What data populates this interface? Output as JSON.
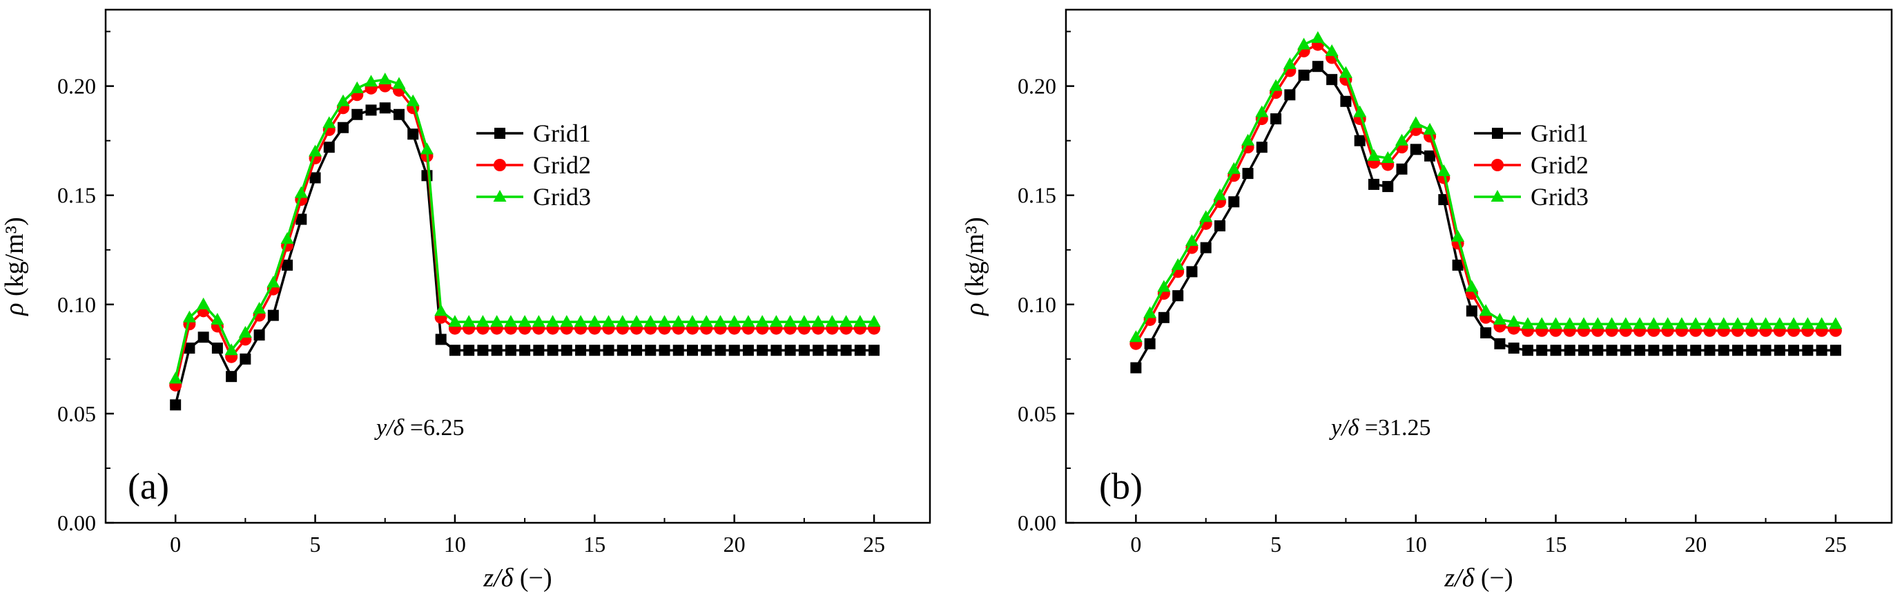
{
  "chart_data": [
    {
      "type": "line",
      "panel_label": "(a)",
      "annotation": {
        "prefix": "y/δ ",
        "value": "=6.25"
      },
      "xlabel": {
        "var": "z/δ",
        "unit": " (−)"
      },
      "ylabel": {
        "var": "ρ",
        "unit": " (kg/m³)"
      },
      "xlim": [
        -2.5,
        27
      ],
      "ylim": [
        0,
        0.235
      ],
      "xticks": [
        0,
        5,
        10,
        15,
        20,
        25
      ],
      "xtick_labels": [
        "0",
        "5",
        "10",
        "15",
        "20",
        "25"
      ],
      "yticks": [
        0,
        0.05,
        0.1,
        0.15,
        0.2
      ],
      "ytick_labels": [
        "0.00",
        "0.05",
        "0.10",
        "0.15",
        "0.20"
      ],
      "legend_position": "center-right",
      "series": [
        {
          "name": "Grid1",
          "color": "#000000",
          "marker": "square",
          "x": [
            0,
            0.5,
            1,
            1.5,
            2,
            2.5,
            3,
            3.5,
            4,
            4.5,
            5,
            5.5,
            6,
            6.5,
            7,
            7.5,
            8,
            8.5,
            9,
            9.5,
            10,
            10.5,
            11,
            11.5,
            12,
            12.5,
            13,
            13.5,
            14,
            14.5,
            15,
            15.5,
            16,
            16.5,
            17,
            17.5,
            18,
            18.5,
            19,
            19.5,
            20,
            20.5,
            21,
            21.5,
            22,
            22.5,
            23,
            23.5,
            24,
            24.5,
            25
          ],
          "y": [
            0.054,
            0.08,
            0.085,
            0.08,
            0.067,
            0.075,
            0.086,
            0.095,
            0.118,
            0.139,
            0.158,
            0.172,
            0.181,
            0.187,
            0.189,
            0.19,
            0.187,
            0.178,
            0.159,
            0.084,
            0.079,
            0.079,
            0.079,
            0.079,
            0.079,
            0.079,
            0.079,
            0.079,
            0.079,
            0.079,
            0.079,
            0.079,
            0.079,
            0.079,
            0.079,
            0.079,
            0.079,
            0.079,
            0.079,
            0.079,
            0.079,
            0.079,
            0.079,
            0.079,
            0.079,
            0.079,
            0.079,
            0.079,
            0.079,
            0.079,
            0.079
          ]
        },
        {
          "name": "Grid2",
          "color": "#ff0000",
          "marker": "circle",
          "x": [
            0,
            0.5,
            1,
            1.5,
            2,
            2.5,
            3,
            3.5,
            4,
            4.5,
            5,
            5.5,
            6,
            6.5,
            7,
            7.5,
            8,
            8.5,
            9,
            9.5,
            10,
            10.5,
            11,
            11.5,
            12,
            12.5,
            13,
            13.5,
            14,
            14.5,
            15,
            15.5,
            16,
            16.5,
            17,
            17.5,
            18,
            18.5,
            19,
            19.5,
            20,
            20.5,
            21,
            21.5,
            22,
            22.5,
            23,
            23.5,
            24,
            24.5,
            25
          ],
          "y": [
            0.063,
            0.091,
            0.097,
            0.09,
            0.076,
            0.084,
            0.095,
            0.107,
            0.127,
            0.148,
            0.167,
            0.18,
            0.19,
            0.196,
            0.199,
            0.2,
            0.198,
            0.19,
            0.168,
            0.094,
            0.089,
            0.089,
            0.089,
            0.089,
            0.089,
            0.089,
            0.089,
            0.089,
            0.089,
            0.089,
            0.089,
            0.089,
            0.089,
            0.089,
            0.089,
            0.089,
            0.089,
            0.089,
            0.089,
            0.089,
            0.089,
            0.089,
            0.089,
            0.089,
            0.089,
            0.089,
            0.089,
            0.089,
            0.089,
            0.089,
            0.089
          ]
        },
        {
          "name": "Grid3",
          "color": "#00dd00",
          "marker": "triangle",
          "x": [
            0,
            0.5,
            1,
            1.5,
            2,
            2.5,
            3,
            3.5,
            4,
            4.5,
            5,
            5.5,
            6,
            6.5,
            7,
            7.5,
            8,
            8.5,
            9,
            9.5,
            10,
            10.5,
            11,
            11.5,
            12,
            12.5,
            13,
            13.5,
            14,
            14.5,
            15,
            15.5,
            16,
            16.5,
            17,
            17.5,
            18,
            18.5,
            19,
            19.5,
            20,
            20.5,
            21,
            21.5,
            22,
            22.5,
            23,
            23.5,
            24,
            24.5,
            25
          ],
          "y": [
            0.066,
            0.094,
            0.1,
            0.093,
            0.079,
            0.087,
            0.098,
            0.11,
            0.13,
            0.151,
            0.17,
            0.183,
            0.193,
            0.199,
            0.202,
            0.203,
            0.201,
            0.193,
            0.171,
            0.097,
            0.092,
            0.092,
            0.092,
            0.092,
            0.092,
            0.092,
            0.092,
            0.092,
            0.092,
            0.092,
            0.092,
            0.092,
            0.092,
            0.092,
            0.092,
            0.092,
            0.092,
            0.092,
            0.092,
            0.092,
            0.092,
            0.092,
            0.092,
            0.092,
            0.092,
            0.092,
            0.092,
            0.092,
            0.092,
            0.092,
            0.092
          ]
        }
      ]
    },
    {
      "type": "line",
      "panel_label": "(b)",
      "annotation": {
        "prefix": "y/δ ",
        "value": "=31.25"
      },
      "xlabel": {
        "var": "z/δ",
        "unit": " (−)"
      },
      "ylabel": {
        "var": "ρ",
        "unit": " (kg/m³)"
      },
      "xlim": [
        -2.5,
        27
      ],
      "ylim": [
        0,
        0.235
      ],
      "xticks": [
        0,
        5,
        10,
        15,
        20,
        25
      ],
      "xtick_labels": [
        "0",
        "5",
        "10",
        "15",
        "20",
        "25"
      ],
      "yticks": [
        0,
        0.05,
        0.1,
        0.15,
        0.2
      ],
      "ytick_labels": [
        "0.00",
        "0.05",
        "0.10",
        "0.15",
        "0.20"
      ],
      "legend_position": "center-right",
      "series": [
        {
          "name": "Grid1",
          "color": "#000000",
          "marker": "square",
          "x": [
            0,
            0.5,
            1,
            1.5,
            2,
            2.5,
            3,
            3.5,
            4,
            4.5,
            5,
            5.5,
            6,
            6.5,
            7,
            7.5,
            8,
            8.5,
            9,
            9.5,
            10,
            10.5,
            11,
            11.5,
            12,
            12.5,
            13,
            13.5,
            14,
            14.5,
            15,
            15.5,
            16,
            16.5,
            17,
            17.5,
            18,
            18.5,
            19,
            19.5,
            20,
            20.5,
            21,
            21.5,
            22,
            22.5,
            23,
            23.5,
            24,
            24.5,
            25
          ],
          "y": [
            0.071,
            0.082,
            0.094,
            0.104,
            0.115,
            0.126,
            0.136,
            0.147,
            0.16,
            0.172,
            0.185,
            0.196,
            0.205,
            0.209,
            0.203,
            0.193,
            0.175,
            0.155,
            0.154,
            0.162,
            0.171,
            0.168,
            0.148,
            0.118,
            0.097,
            0.087,
            0.082,
            0.08,
            0.079,
            0.079,
            0.079,
            0.079,
            0.079,
            0.079,
            0.079,
            0.079,
            0.079,
            0.079,
            0.079,
            0.079,
            0.079,
            0.079,
            0.079,
            0.079,
            0.079,
            0.079,
            0.079,
            0.079,
            0.079,
            0.079,
            0.079
          ]
        },
        {
          "name": "Grid2",
          "color": "#ff0000",
          "marker": "circle",
          "x": [
            0,
            0.5,
            1,
            1.5,
            2,
            2.5,
            3,
            3.5,
            4,
            4.5,
            5,
            5.5,
            6,
            6.5,
            7,
            7.5,
            8,
            8.5,
            9,
            9.5,
            10,
            10.5,
            11,
            11.5,
            12,
            12.5,
            13,
            13.5,
            14,
            14.5,
            15,
            15.5,
            16,
            16.5,
            17,
            17.5,
            18,
            18.5,
            19,
            19.5,
            20,
            20.5,
            21,
            21.5,
            22,
            22.5,
            23,
            23.5,
            24,
            24.5,
            25
          ],
          "y": [
            0.082,
            0.093,
            0.105,
            0.115,
            0.126,
            0.137,
            0.147,
            0.159,
            0.172,
            0.185,
            0.197,
            0.207,
            0.216,
            0.219,
            0.213,
            0.203,
            0.185,
            0.165,
            0.164,
            0.172,
            0.18,
            0.177,
            0.158,
            0.128,
            0.105,
            0.094,
            0.09,
            0.089,
            0.088,
            0.088,
            0.088,
            0.088,
            0.088,
            0.088,
            0.088,
            0.088,
            0.088,
            0.088,
            0.088,
            0.088,
            0.088,
            0.088,
            0.088,
            0.088,
            0.088,
            0.088,
            0.088,
            0.088,
            0.088,
            0.088,
            0.088
          ]
        },
        {
          "name": "Grid3",
          "color": "#00dd00",
          "marker": "triangle",
          "x": [
            0,
            0.5,
            1,
            1.5,
            2,
            2.5,
            3,
            3.5,
            4,
            4.5,
            5,
            5.5,
            6,
            6.5,
            7,
            7.5,
            8,
            8.5,
            9,
            9.5,
            10,
            10.5,
            11,
            11.5,
            12,
            12.5,
            13,
            13.5,
            14,
            14.5,
            15,
            15.5,
            16,
            16.5,
            17,
            17.5,
            18,
            18.5,
            19,
            19.5,
            20,
            20.5,
            21,
            21.5,
            22,
            22.5,
            23,
            23.5,
            24,
            24.5,
            25
          ],
          "y": [
            0.085,
            0.096,
            0.108,
            0.118,
            0.129,
            0.14,
            0.15,
            0.162,
            0.175,
            0.188,
            0.2,
            0.21,
            0.219,
            0.222,
            0.216,
            0.206,
            0.188,
            0.168,
            0.167,
            0.175,
            0.183,
            0.18,
            0.161,
            0.131,
            0.108,
            0.097,
            0.093,
            0.092,
            0.091,
            0.091,
            0.091,
            0.091,
            0.091,
            0.091,
            0.091,
            0.091,
            0.091,
            0.091,
            0.091,
            0.091,
            0.091,
            0.091,
            0.091,
            0.091,
            0.091,
            0.091,
            0.091,
            0.091,
            0.091,
            0.091,
            0.091
          ]
        }
      ]
    }
  ]
}
